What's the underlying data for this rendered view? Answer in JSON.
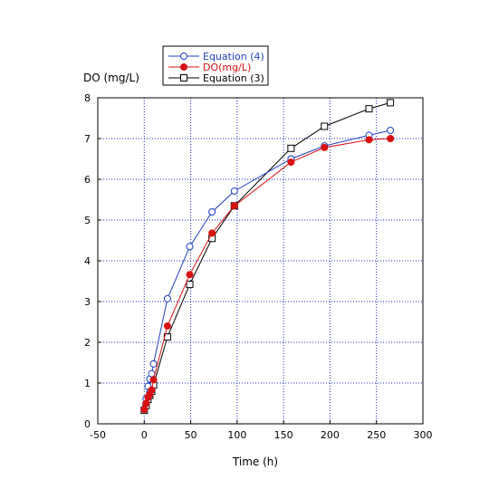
{
  "chart_data": {
    "type": "line",
    "title": "",
    "xlabel": "Time (h)",
    "ylabel": "DO (mg/L)",
    "xlim": [
      -50,
      300
    ],
    "ylim": [
      0,
      8
    ],
    "xticks": [
      -50,
      0,
      50,
      100,
      150,
      200,
      250,
      300
    ],
    "yticks": [
      0,
      1,
      2,
      3,
      4,
      5,
      6,
      7,
      8
    ],
    "grid": true,
    "legend_position": "top-left-outside",
    "series": [
      {
        "name": "Equation (4)",
        "color": "#1f3fbf",
        "marker": "open-circle",
        "x": [
          0,
          2,
          4,
          6,
          8,
          10,
          25,
          49,
          73,
          97,
          158,
          194,
          242,
          265
        ],
        "y": [
          0.35,
          0.62,
          0.92,
          1.1,
          1.23,
          1.47,
          3.07,
          4.35,
          5.2,
          5.71,
          6.5,
          6.82,
          7.08,
          7.2
        ]
      },
      {
        "name": "DO(mg/L)",
        "color": "#d81010",
        "marker": "filled-circle",
        "x": [
          0,
          2,
          4,
          6,
          8,
          10,
          25,
          49,
          73,
          97,
          158,
          194,
          242,
          265
        ],
        "y": [
          0.35,
          0.5,
          0.65,
          0.72,
          0.83,
          1.08,
          2.4,
          3.66,
          4.68,
          5.35,
          6.42,
          6.78,
          6.97,
          7.0
        ]
      },
      {
        "name": "Equation (3)",
        "color": "#000000",
        "marker": "open-square",
        "x": [
          0,
          2,
          4,
          6,
          8,
          10,
          25,
          49,
          73,
          97,
          158,
          194,
          242,
          265
        ],
        "y": [
          0.33,
          0.45,
          0.6,
          0.7,
          0.8,
          0.95,
          2.13,
          3.42,
          4.55,
          5.35,
          6.76,
          7.3,
          7.73,
          7.88
        ]
      }
    ]
  }
}
